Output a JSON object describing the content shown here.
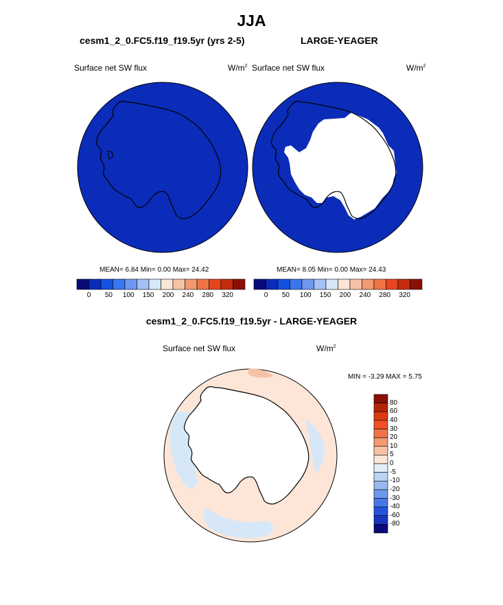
{
  "figure": {
    "title": "JJA",
    "left_panel_title": "cesm1_2_0.FC5.f19_f19.5yr (yrs 2-5)",
    "right_panel_title": "LARGE-YEAGER",
    "diff_panel_title": "cesm1_2_0.FC5.f19_f19.5yr - LARGE-YEAGER"
  },
  "left_map": {
    "variable": "Surface net SW flux",
    "units": "W/m",
    "units_sup": "2",
    "stats": "MEAN=   6.84  Min=   0.00  Max=  24.42"
  },
  "right_map": {
    "variable": "Surface net SW flux",
    "units": "W/m",
    "units_sup": "2",
    "stats": "MEAN=   8.05  Min=   0.00  Max=  24.43"
  },
  "diff_map": {
    "variable": "Surface net SW flux",
    "units": "W/m",
    "units_sup": "2",
    "stats": "MIN =  -3.29 MAX =   5.75"
  },
  "colors": {
    "ocean_fill": "#0b2cb8",
    "land": "#ffffff",
    "diff_positive": "#fde6d8",
    "diff_negative": "#d6e8f8"
  },
  "horizontal_colorbar": {
    "colors": [
      "#0a0a7a",
      "#0b2cb8",
      "#1650e0",
      "#3a76ee",
      "#6e98f0",
      "#a4c0f6",
      "#d6e8f8",
      "#fbe5d6",
      "#f6c2a6",
      "#f39a72",
      "#f07346",
      "#e6461e",
      "#c42c0e",
      "#8a1006"
    ],
    "labels": [
      "0",
      "50",
      "100",
      "150",
      "200",
      "240",
      "280",
      "320"
    ]
  },
  "vertical_colorbar": {
    "colors": [
      "#8a1006",
      "#b4240a",
      "#dc3a14",
      "#f05024",
      "#f07346",
      "#f39a72",
      "#f6c2a6",
      "#fbe5d6",
      "#e4eef8",
      "#bcd4f4",
      "#98b8f0",
      "#6e98ec",
      "#4878e8",
      "#2454dc",
      "#1636bc",
      "#0a0a7a"
    ],
    "labels": [
      "80",
      "60",
      "40",
      "30",
      "20",
      "10",
      "5",
      "0",
      "-5",
      "-10",
      "-20",
      "-30",
      "-40",
      "-60",
      "-80"
    ]
  }
}
